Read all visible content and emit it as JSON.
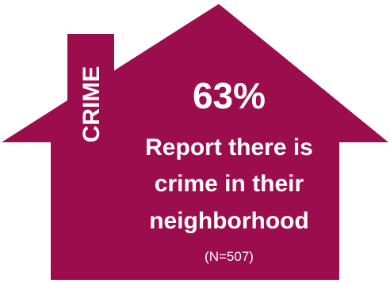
{
  "infographic": {
    "category_label": "CRIME",
    "stat_value": "63%",
    "statement_lines": [
      "Report there is",
      "crime in their",
      "neighborhood"
    ],
    "sample_size": "(N=507)",
    "share_percent": 63
  },
  "colors": {
    "house_fill": "#9C0D4E",
    "text": "#FFFFFF",
    "background": "#FFFFFF"
  }
}
